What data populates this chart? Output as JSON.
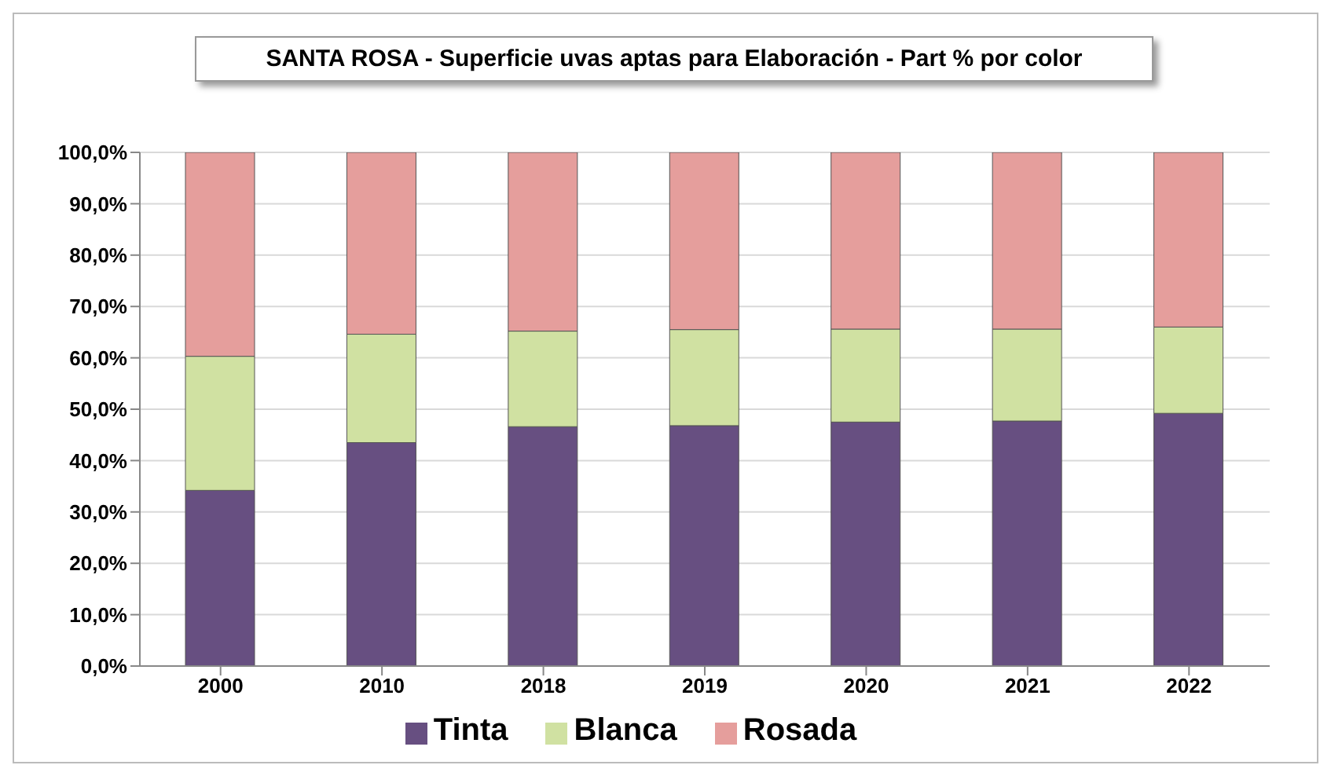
{
  "chart_data": {
    "type": "bar",
    "stacked": true,
    "title": "SANTA ROSA - Superficie uvas aptas para Elaboración  - Part % por color",
    "categories": [
      "2000",
      "2010",
      "2018",
      "2019",
      "2020",
      "2021",
      "2022"
    ],
    "series": [
      {
        "name": "Tinta",
        "color": "#674f81",
        "values": [
          34.2,
          43.5,
          46.6,
          46.8,
          47.5,
          47.7,
          49.2
        ]
      },
      {
        "name": "Blanca",
        "color": "#d0e1a2",
        "values": [
          26.1,
          21.1,
          18.6,
          18.7,
          18.1,
          17.9,
          16.8
        ]
      },
      {
        "name": "Rosada",
        "color": "#e59e9c",
        "values": [
          39.7,
          35.4,
          34.8,
          34.5,
          34.4,
          34.4,
          34.0
        ]
      }
    ],
    "ylim": [
      0,
      100
    ],
    "yticks": [
      {
        "value": 0,
        "label": "0,0%"
      },
      {
        "value": 10,
        "label": "10,0%"
      },
      {
        "value": 20,
        "label": "20,0%"
      },
      {
        "value": 30,
        "label": "30,0%"
      },
      {
        "value": 40,
        "label": "40,0%"
      },
      {
        "value": 50,
        "label": "50,0%"
      },
      {
        "value": 60,
        "label": "60,0%"
      },
      {
        "value": 70,
        "label": "70,0%"
      },
      {
        "value": 80,
        "label": "80,0%"
      },
      {
        "value": 90,
        "label": "90,0%"
      },
      {
        "value": 100,
        "label": "100,0%"
      }
    ],
    "grid": "y",
    "legend": "bottom"
  }
}
